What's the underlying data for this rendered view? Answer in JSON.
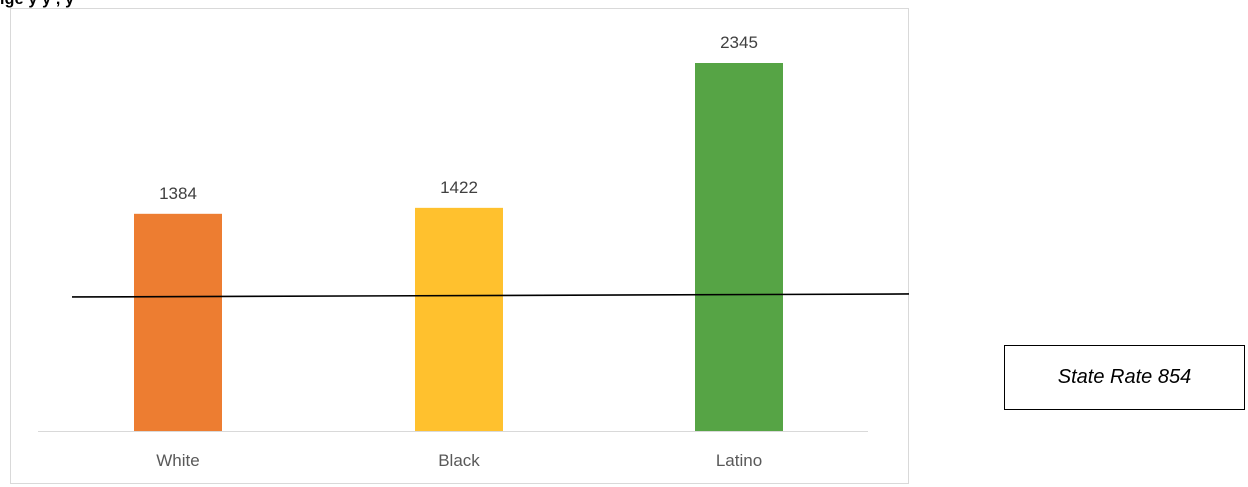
{
  "header": {
    "partial_title": "ige                                                         y              y                     ,                   y"
  },
  "chart_data": {
    "type": "bar",
    "categories": [
      "White",
      "Black",
      "Latino"
    ],
    "values": [
      1384,
      1422,
      2345
    ],
    "data_labels": [
      "1384",
      "1422",
      "2345"
    ],
    "colors": [
      "#ed7d31",
      "#ffc12e",
      "#56a445"
    ],
    "title": "",
    "xlabel": "",
    "ylabel": "",
    "ylim": [
      0,
      2500
    ],
    "y_axis_visible": false,
    "grid": false,
    "legend": "none",
    "reference_line": {
      "value": 854,
      "label": "State Rate 854",
      "color": "#000000"
    }
  }
}
